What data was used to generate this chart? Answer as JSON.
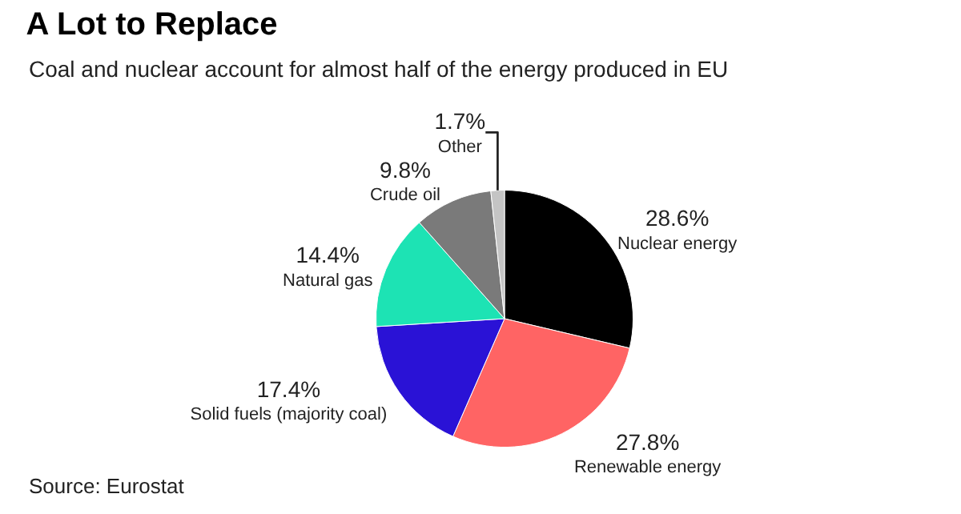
{
  "chart_data": {
    "type": "pie",
    "title": "A Lot to Replace",
    "subtitle": "Coal and nuclear account for almost half of the energy produced in EU",
    "categories": [
      "Nuclear energy",
      "Renewable energy",
      "Solid fuels (majority coal)",
      "Natural gas",
      "Crude oil",
      "Other"
    ],
    "values": [
      28.6,
      27.8,
      17.4,
      14.4,
      9.8,
      1.7
    ],
    "value_labels": [
      "28.6%",
      "27.8%",
      "17.4%",
      "14.4%",
      "9.8%",
      "1.7%"
    ],
    "colors": [
      "#000000",
      "#ff6464",
      "#2a12d6",
      "#1de3b4",
      "#7a7a7a",
      "#c4c4c4"
    ],
    "annotations": [
      "Source: Eurostat"
    ]
  }
}
